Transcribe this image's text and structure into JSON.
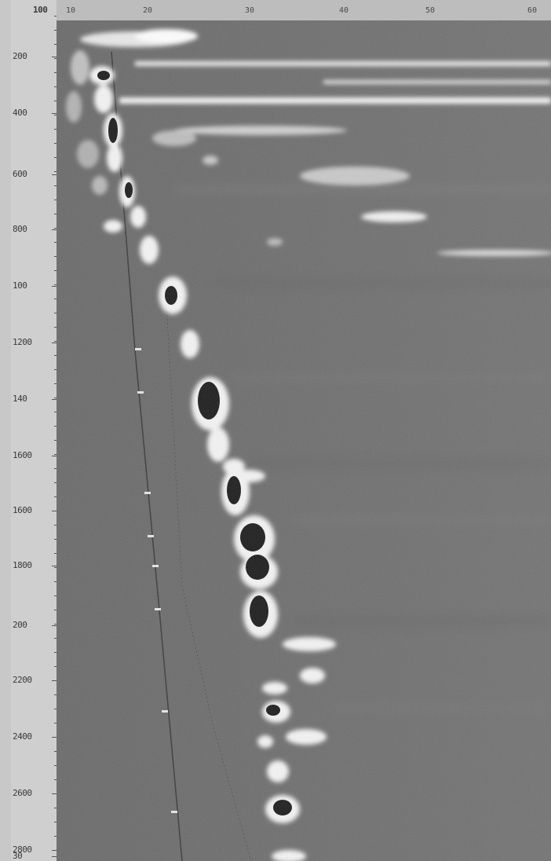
{
  "image": {
    "description_hidden": true,
    "colors": {
      "background": "#6f6f6f",
      "bright_echo": "#f4f4f4",
      "dark_core": "#1c1c1c",
      "axis_panel": "#cfcfcf"
    }
  },
  "axis": {
    "top_value": "100",
    "labels": [
      "200",
      "400",
      "600",
      "800",
      "100",
      "1200",
      "140",
      "1600",
      "1600",
      "1800",
      "200",
      "2200",
      "2400",
      "2600",
      "2800",
      "30"
    ]
  },
  "ruler": {
    "labels": [
      "10",
      "20",
      "30",
      "40",
      "50",
      "60"
    ]
  }
}
